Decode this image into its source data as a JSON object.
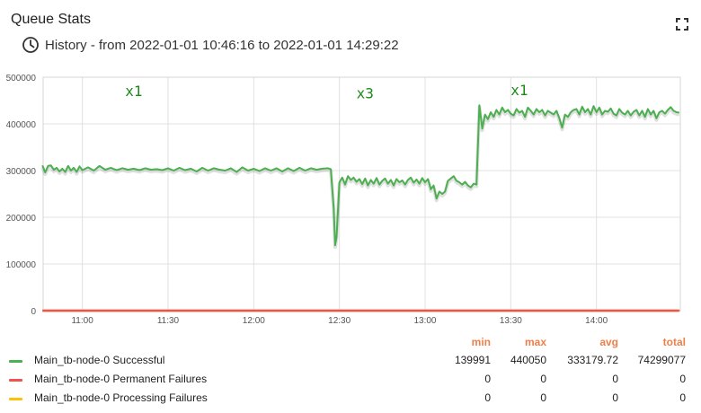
{
  "widget": {
    "title": "Queue Stats",
    "subtitle": "History - from 2022-01-01 10:46:16 to 2022-01-01 14:29:22",
    "clock_icon": "clock-icon",
    "fullscreen_icon": "fullscreen-icon"
  },
  "chart_data": {
    "type": "line",
    "title": "",
    "xlabel": "",
    "ylabel": "",
    "x_range": [
      "10:46:16",
      "14:29:22"
    ],
    "x_ticks": [
      "11:00",
      "11:30",
      "12:00",
      "12:30",
      "13:00",
      "13:30",
      "14:00"
    ],
    "ylim": [
      0,
      500000
    ],
    "y_ticks": [
      "0",
      "100000",
      "200000",
      "300000",
      "400000",
      "500000"
    ],
    "grid": true,
    "annotations": [
      {
        "text": "x1",
        "x": "11:18",
        "y": 460000
      },
      {
        "text": "x3",
        "x": "12:39",
        "y": 455000
      },
      {
        "text": "x1",
        "x": "13:33",
        "y": 462000
      }
    ],
    "series": [
      {
        "name": "Main_tb-node-0 Successful",
        "color": "#4caf50",
        "points": [
          [
            "10:46",
            311000
          ],
          [
            "10:47",
            296000
          ],
          [
            "10:48",
            310000
          ],
          [
            "10:49",
            311000
          ],
          [
            "10:50",
            302000
          ],
          [
            "10:51",
            306000
          ],
          [
            "10:52",
            298000
          ],
          [
            "10:53",
            304000
          ],
          [
            "10:54",
            297000
          ],
          [
            "10:55",
            310000
          ],
          [
            "10:56",
            300000
          ],
          [
            "10:57",
            306000
          ],
          [
            "10:58",
            297000
          ],
          [
            "10:59",
            309000
          ],
          [
            "11:00",
            301000
          ],
          [
            "11:02",
            307000
          ],
          [
            "11:04",
            300000
          ],
          [
            "11:06",
            310000
          ],
          [
            "11:08",
            302000
          ],
          [
            "11:10",
            306000
          ],
          [
            "11:12",
            301000
          ],
          [
            "11:14",
            305000
          ],
          [
            "11:16",
            302000
          ],
          [
            "11:18",
            304000
          ],
          [
            "11:20",
            301000
          ],
          [
            "11:22",
            305000
          ],
          [
            "11:24",
            302000
          ],
          [
            "11:26",
            303000
          ],
          [
            "11:28",
            301000
          ],
          [
            "11:30",
            305000
          ],
          [
            "11:32",
            300000
          ],
          [
            "11:34",
            306000
          ],
          [
            "11:36",
            301000
          ],
          [
            "11:38",
            304000
          ],
          [
            "11:40",
            298000
          ],
          [
            "11:42",
            306000
          ],
          [
            "11:44",
            300000
          ],
          [
            "11:46",
            305000
          ],
          [
            "11:48",
            302000
          ],
          [
            "11:50",
            300000
          ],
          [
            "11:52",
            305000
          ],
          [
            "11:54",
            297000
          ],
          [
            "11:56",
            307000
          ],
          [
            "11:58",
            300000
          ],
          [
            "12:00",
            304000
          ],
          [
            "12:02",
            299000
          ],
          [
            "12:04",
            305000
          ],
          [
            "12:06",
            300000
          ],
          [
            "12:08",
            305000
          ],
          [
            "12:10",
            298000
          ],
          [
            "12:12",
            305000
          ],
          [
            "12:14",
            299000
          ],
          [
            "12:16",
            306000
          ],
          [
            "12:18",
            300000
          ],
          [
            "12:20",
            305000
          ],
          [
            "12:22",
            302000
          ],
          [
            "12:24",
            304000
          ],
          [
            "12:26",
            305000
          ],
          [
            "12:27",
            303000
          ],
          [
            "12:28",
            220000
          ],
          [
            "12:28.5",
            140000
          ],
          [
            "12:29",
            158000
          ],
          [
            "12:30",
            275000
          ],
          [
            "12:31",
            285000
          ],
          [
            "12:32",
            270000
          ],
          [
            "12:33",
            288000
          ],
          [
            "12:34",
            280000
          ],
          [
            "12:35",
            285000
          ],
          [
            "12:36",
            276000
          ],
          [
            "12:37",
            282000
          ],
          [
            "12:38",
            271000
          ],
          [
            "12:39",
            283000
          ],
          [
            "12:40",
            268000
          ],
          [
            "12:41",
            280000
          ],
          [
            "12:42",
            272000
          ],
          [
            "12:43",
            284000
          ],
          [
            "12:44",
            270000
          ],
          [
            "12:45",
            278000
          ],
          [
            "12:46",
            283000
          ],
          [
            "12:47",
            272000
          ],
          [
            "12:48",
            280000
          ],
          [
            "12:49",
            268000
          ],
          [
            "12:50",
            282000
          ],
          [
            "12:51",
            275000
          ],
          [
            "12:52",
            279000
          ],
          [
            "12:53",
            270000
          ],
          [
            "12:54",
            280000
          ],
          [
            "12:55",
            285000
          ],
          [
            "12:56",
            274000
          ],
          [
            "12:57",
            281000
          ],
          [
            "12:58",
            272000
          ],
          [
            "12:59",
            284000
          ],
          [
            "13:00",
            275000
          ],
          [
            "13:01",
            282000
          ],
          [
            "13:02",
            260000
          ],
          [
            "13:03",
            268000
          ],
          [
            "13:04",
            240000
          ],
          [
            "13:05",
            255000
          ],
          [
            "13:06",
            250000
          ],
          [
            "13:07",
            255000
          ],
          [
            "13:08",
            278000
          ],
          [
            "13:09",
            283000
          ],
          [
            "13:10",
            288000
          ],
          [
            "13:11",
            278000
          ],
          [
            "13:12",
            275000
          ],
          [
            "13:13",
            270000
          ],
          [
            "13:14",
            276000
          ],
          [
            "13:15",
            268000
          ],
          [
            "13:16",
            264000
          ],
          [
            "13:17",
            272000
          ],
          [
            "13:18",
            270000
          ],
          [
            "13:19",
            440000
          ],
          [
            "13:20",
            390000
          ],
          [
            "13:21",
            420000
          ],
          [
            "13:22",
            410000
          ],
          [
            "13:23",
            425000
          ],
          [
            "13:24",
            415000
          ],
          [
            "13:25",
            430000
          ],
          [
            "13:26",
            420000
          ],
          [
            "13:27",
            435000
          ],
          [
            "13:28",
            425000
          ],
          [
            "13:29",
            430000
          ],
          [
            "13:30",
            422000
          ],
          [
            "13:31",
            418000
          ],
          [
            "13:32",
            432000
          ],
          [
            "13:33",
            424000
          ],
          [
            "13:34",
            428000
          ],
          [
            "13:35",
            415000
          ],
          [
            "13:36",
            435000
          ],
          [
            "13:37",
            428000
          ],
          [
            "13:38",
            420000
          ],
          [
            "13:39",
            432000
          ],
          [
            "13:40",
            425000
          ],
          [
            "13:41",
            430000
          ],
          [
            "13:42",
            418000
          ],
          [
            "13:43",
            428000
          ],
          [
            "13:44",
            424000
          ],
          [
            "13:45",
            420000
          ],
          [
            "13:46",
            428000
          ],
          [
            "13:47",
            412000
          ],
          [
            "13:48",
            392000
          ],
          [
            "13:49",
            420000
          ],
          [
            "13:50",
            415000
          ],
          [
            "13:51",
            425000
          ],
          [
            "13:52",
            430000
          ],
          [
            "13:53",
            432000
          ],
          [
            "13:54",
            420000
          ],
          [
            "13:55",
            437000
          ],
          [
            "13:56",
            425000
          ],
          [
            "13:57",
            432000
          ],
          [
            "13:58",
            420000
          ],
          [
            "13:59",
            438000
          ],
          [
            "14:00",
            425000
          ],
          [
            "14:01",
            435000
          ],
          [
            "14:02",
            420000
          ],
          [
            "14:03",
            428000
          ],
          [
            "14:04",
            426000
          ],
          [
            "14:05",
            433000
          ],
          [
            "14:06",
            422000
          ],
          [
            "14:07",
            418000
          ],
          [
            "14:08",
            432000
          ],
          [
            "14:09",
            424000
          ],
          [
            "14:10",
            420000
          ],
          [
            "14:11",
            428000
          ],
          [
            "14:12",
            418000
          ],
          [
            "14:13",
            426000
          ],
          [
            "14:14",
            430000
          ],
          [
            "14:15",
            418000
          ],
          [
            "14:16",
            428000
          ],
          [
            "14:17",
            415000
          ],
          [
            "14:18",
            432000
          ],
          [
            "14:19",
            420000
          ],
          [
            "14:20",
            428000
          ],
          [
            "14:21",
            412000
          ],
          [
            "14:22",
            425000
          ],
          [
            "14:23",
            428000
          ],
          [
            "14:24",
            422000
          ],
          [
            "14:25",
            430000
          ],
          [
            "14:26",
            436000
          ],
          [
            "14:27",
            428000
          ],
          [
            "14:28",
            425000
          ],
          [
            "14:29",
            424000
          ]
        ]
      },
      {
        "name": "Main_tb-node-0 Permanent Failures",
        "color": "#ef5350",
        "points": [
          [
            "10:46",
            0
          ],
          [
            "14:29",
            0
          ]
        ]
      },
      {
        "name": "Main_tb-node-0 Processing Failures",
        "color": "#ffc107",
        "points": [
          [
            "10:46",
            0
          ],
          [
            "14:29",
            0
          ]
        ]
      }
    ]
  },
  "legend": {
    "headers": {
      "min": "min",
      "max": "max",
      "avg": "avg",
      "total": "total"
    },
    "rows": [
      {
        "label": "Main_tb-node-0 Successful",
        "color": "#4caf50",
        "min": "139991",
        "max": "440050",
        "avg": "333179.72",
        "total": "74299077"
      },
      {
        "label": "Main_tb-node-0 Permanent Failures",
        "color": "#ef5350",
        "min": "0",
        "max": "0",
        "avg": "0",
        "total": "0"
      },
      {
        "label": "Main_tb-node-0 Processing Failures",
        "color": "#ffc107",
        "min": "0",
        "max": "0",
        "avg": "0",
        "total": "0"
      }
    ]
  }
}
